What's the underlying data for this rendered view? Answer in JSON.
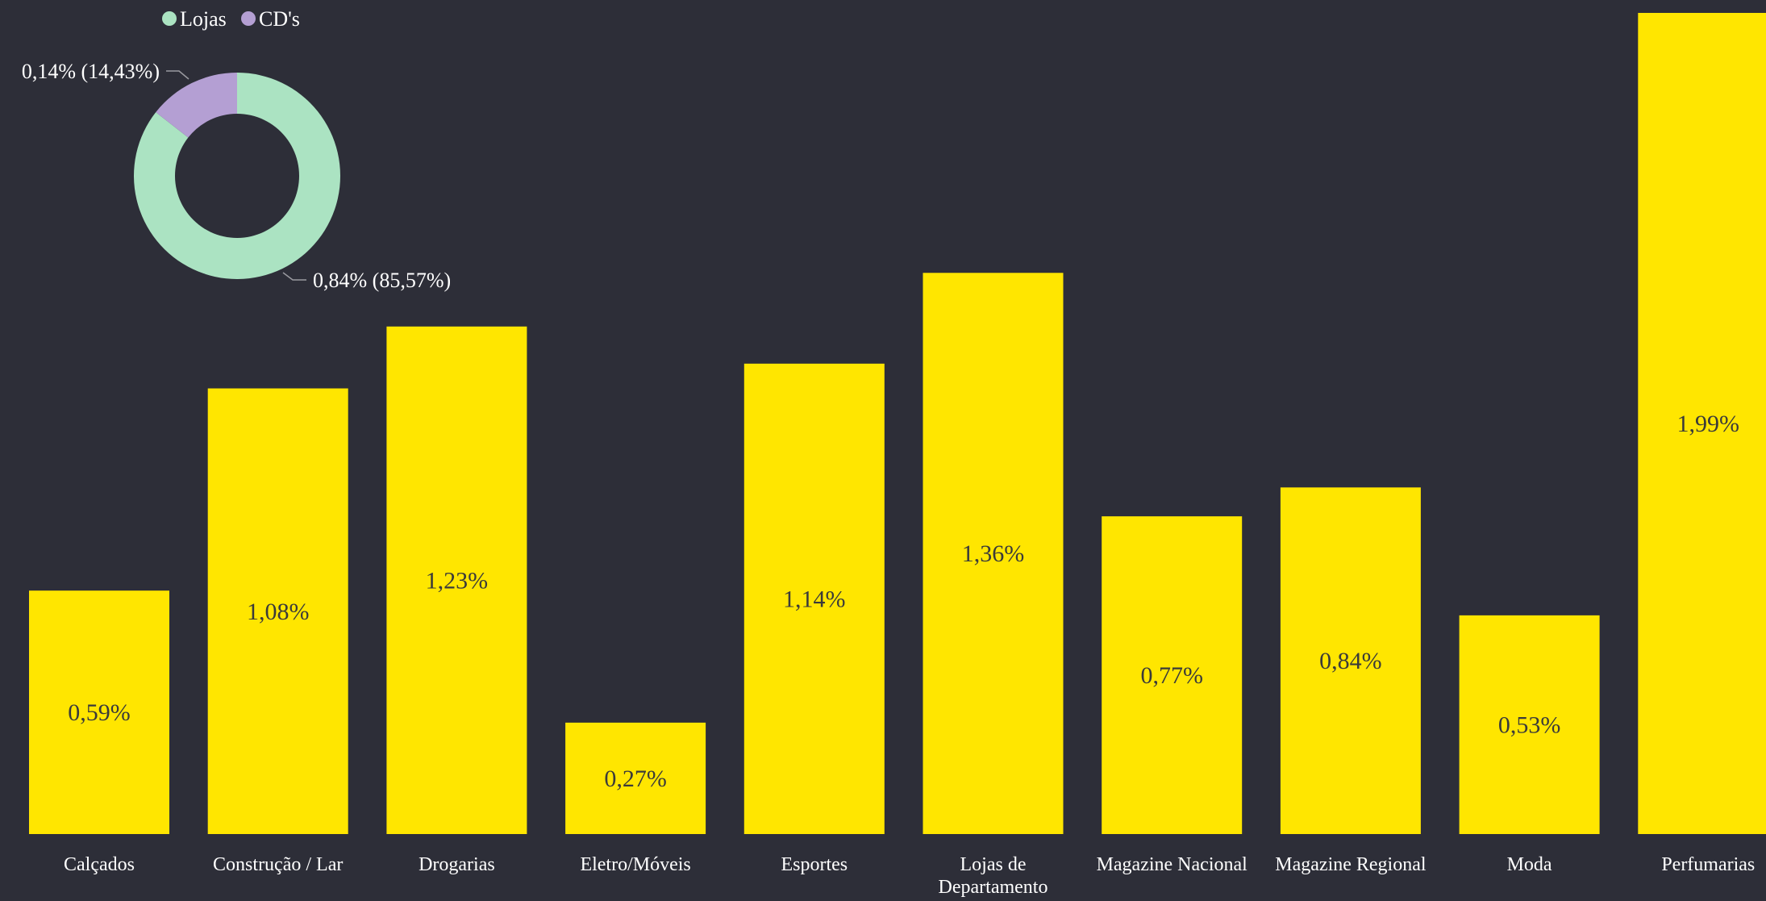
{
  "colors": {
    "background": "#2d2e38",
    "bar": "#ffe600",
    "lojas": "#abe3c2",
    "cds": "#b49fd3"
  },
  "chart_data": [
    {
      "type": "bar",
      "categories": [
        "Calçados",
        "Construção / Lar",
        "Drogarias",
        "Eletro/Móveis",
        "Esportes",
        "Lojas de Departamento",
        "Magazine Nacional",
        "Magazine Regional",
        "Moda",
        "Perfumarias"
      ],
      "category_lines": [
        [
          "Calçados"
        ],
        [
          "Construção / Lar"
        ],
        [
          "Drogarias"
        ],
        [
          "Eletro/Móveis"
        ],
        [
          "Esportes"
        ],
        [
          "Lojas de",
          "Departamento"
        ],
        [
          "Magazine Nacional"
        ],
        [
          "Magazine Regional"
        ],
        [
          "Moda"
        ],
        [
          "Perfumarias"
        ]
      ],
      "values": [
        0.59,
        1.08,
        1.23,
        0.27,
        1.14,
        1.36,
        0.77,
        0.84,
        0.53,
        1.99
      ],
      "value_labels": [
        "0,59%",
        "1,08%",
        "1,23%",
        "0,27%",
        "1,14%",
        "1,36%",
        "0,77%",
        "0,84%",
        "0,53%",
        "1,99%"
      ],
      "ylim": [
        0,
        1.99
      ],
      "grid": false,
      "title": "",
      "xlabel": "",
      "ylabel": ""
    },
    {
      "type": "pie",
      "donut": true,
      "legend_position": "top",
      "slices": [
        {
          "name": "Lojas",
          "value": 85.57,
          "label": "0,84% (85,57%)"
        },
        {
          "name": "CD's",
          "value": 14.43,
          "label": "0,14% (14,43%)"
        }
      ]
    }
  ]
}
